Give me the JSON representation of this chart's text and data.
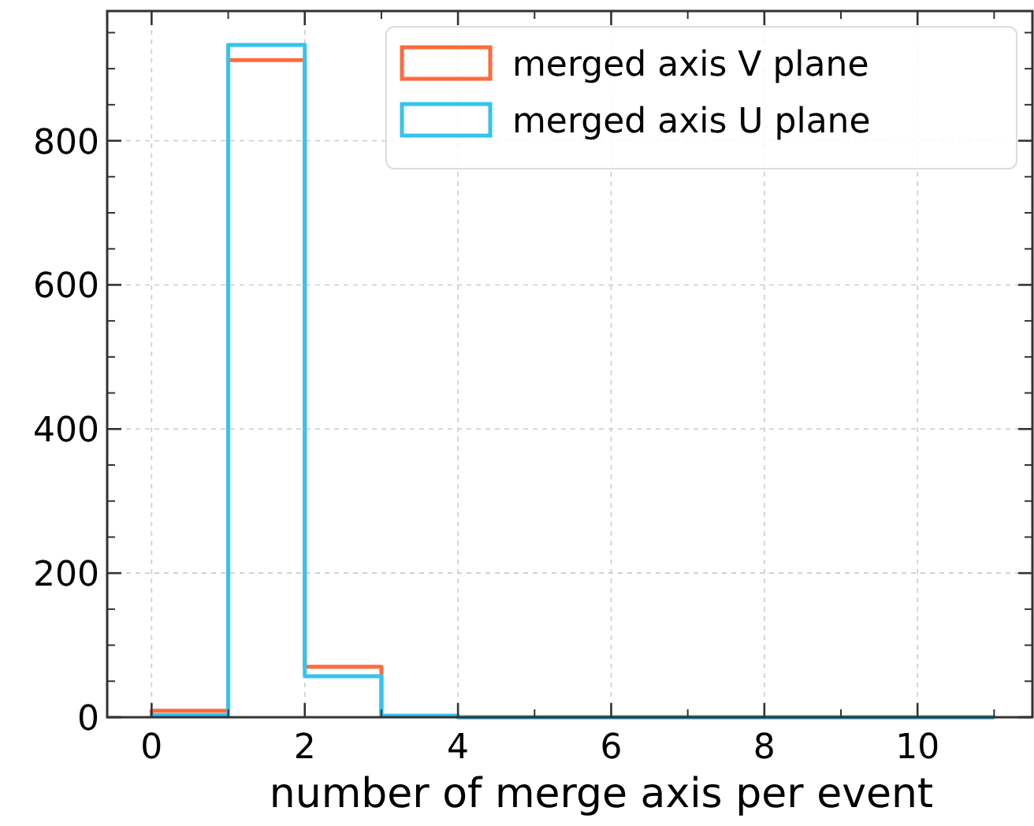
{
  "chart_data": {
    "type": "histogram",
    "xlabel": "number of merge axis per event",
    "bins": [
      0,
      1,
      2,
      3,
      4,
      5,
      6,
      7,
      8,
      9,
      10,
      11
    ],
    "series": [
      {
        "name": "merged axis V plane",
        "color": "#ff6b3d",
        "values": [
          9,
          912,
          70,
          2,
          0,
          0,
          0,
          0,
          0,
          0,
          0
        ]
      },
      {
        "name": "merged axis U plane",
        "color": "#33c4f0",
        "values": [
          3,
          933,
          57,
          2,
          0,
          0,
          0,
          0,
          0,
          0,
          0
        ]
      }
    ],
    "xlim": [
      -0.58,
      11.5
    ],
    "ylim": [
      0,
      980
    ],
    "xticks": [
      0,
      2,
      4,
      6,
      8,
      10
    ],
    "yticks": [
      0,
      200,
      400,
      600,
      800
    ],
    "grid": true,
    "legend": "top right"
  }
}
